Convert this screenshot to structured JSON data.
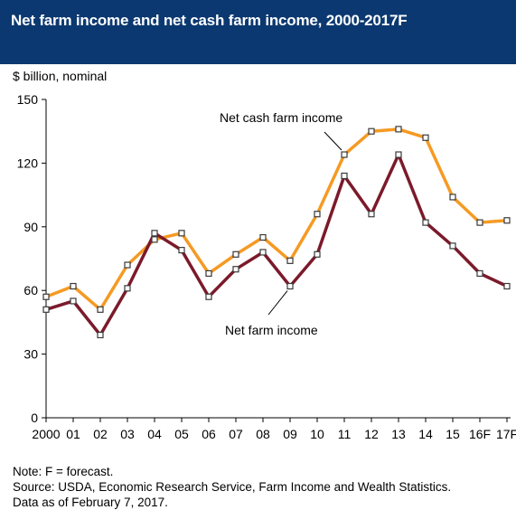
{
  "header": {
    "title": "Net farm income and net cash farm income, 2000-2017F",
    "units": "$ billion, nominal"
  },
  "notes": {
    "note": "Note: F = forecast.",
    "source": "Source: USDA, Economic Research Service, Farm Income and Wealth Statistics.",
    "date": "Data as of February 7, 2017."
  },
  "colors": {
    "title_bg": "#0b3870",
    "net_cash_farm_income": "#f59a23",
    "net_farm_income": "#7b1a2b",
    "axis": "#000000"
  },
  "chart_data": {
    "type": "line",
    "title": "Net farm income and net cash farm income, 2000-2017F",
    "ylabel": "$ billion, nominal",
    "xlabel": "",
    "categories": [
      "2000",
      "01",
      "02",
      "03",
      "04",
      "05",
      "06",
      "07",
      "08",
      "09",
      "10",
      "11",
      "12",
      "13",
      "14",
      "15",
      "16F",
      "17F"
    ],
    "ylim": [
      0,
      150
    ],
    "yticks": [
      0,
      30,
      60,
      90,
      120,
      150
    ],
    "grid": false,
    "series": [
      {
        "name": "Net cash farm income",
        "values": [
          57,
          62,
          51,
          72,
          84,
          87,
          68,
          77,
          85,
          74,
          96,
          124,
          135,
          136,
          132,
          104,
          92,
          93
        ]
      },
      {
        "name": "Net farm income",
        "values": [
          51,
          55,
          39,
          61,
          87,
          79,
          57,
          70,
          78,
          62,
          77,
          114,
          96,
          124,
          92,
          81,
          68,
          62
        ]
      }
    ],
    "annotations": [
      "Net cash farm income",
      "Net farm income"
    ]
  }
}
